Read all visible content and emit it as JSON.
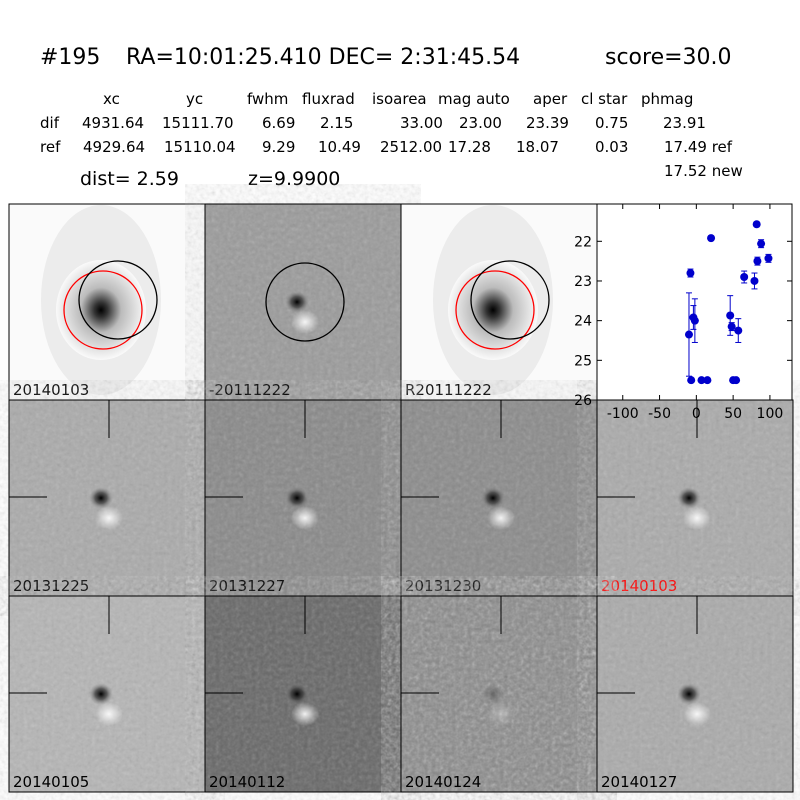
{
  "header": {
    "id": "#195",
    "coords": "RA=10:01:25.410 DEC= 2:31:45.54",
    "score": "score=30.0"
  },
  "table": {
    "columns": [
      "xc",
      "yc",
      "fwhm",
      "fluxrad",
      "isoarea",
      "mag auto",
      "aper",
      "cl star",
      "phmag"
    ],
    "rows": [
      [
        "dif",
        "4931.64",
        "15111.70",
        "6.69",
        "2.15",
        "33.00",
        "23.00",
        "23.39",
        "0.75",
        "23.91"
      ],
      [
        "ref",
        "4929.64",
        "15110.04",
        "9.29",
        "10.49",
        "2512.00",
        "17.28",
        "18.07",
        "0.03",
        "17.49 ref"
      ]
    ],
    "extra": "17.52 new"
  },
  "dist": "dist=  2.59",
  "z": "z=9.9900",
  "panels": [
    {
      "label": "20140103"
    },
    {
      "label": "-20111222"
    },
    {
      "label": "R20111222"
    },
    {
      "label": "20131225"
    },
    {
      "label": "20131227"
    },
    {
      "label": "20131230"
    },
    {
      "label": "20140103",
      "color": "#ff0000"
    },
    {
      "label": "20140105"
    },
    {
      "label": "20140112"
    },
    {
      "label": "20140124"
    },
    {
      "label": "20140127"
    }
  ],
  "chart_data": {
    "type": "scatter",
    "color": "#0000cc",
    "x": [
      -10,
      -8,
      -7,
      -4,
      -2,
      7,
      15,
      20,
      46,
      48,
      50,
      54,
      57,
      65,
      79,
      82,
      83,
      88,
      98
    ],
    "values": [
      24.35,
      22.8,
      25.5,
      23.92,
      24.0,
      25.5,
      25.5,
      21.92,
      23.87,
      24.15,
      25.5,
      25.5,
      24.25,
      22.9,
      23.0,
      21.57,
      22.5,
      22.06,
      22.43
    ],
    "errors": [
      1.05,
      0.1,
      0.05,
      0.3,
      0.55,
      0.05,
      0.05,
      0.05,
      0.5,
      0.1,
      0.05,
      0.05,
      0.3,
      0.15,
      0.2,
      0.05,
      0.1,
      0.1,
      0.1
    ],
    "xlim": [
      -135,
      130
    ],
    "ylim": [
      26,
      21.06
    ],
    "xticks": [
      -100,
      -50,
      0,
      50,
      100
    ],
    "yticks": [
      22,
      23,
      24,
      25,
      26
    ]
  }
}
